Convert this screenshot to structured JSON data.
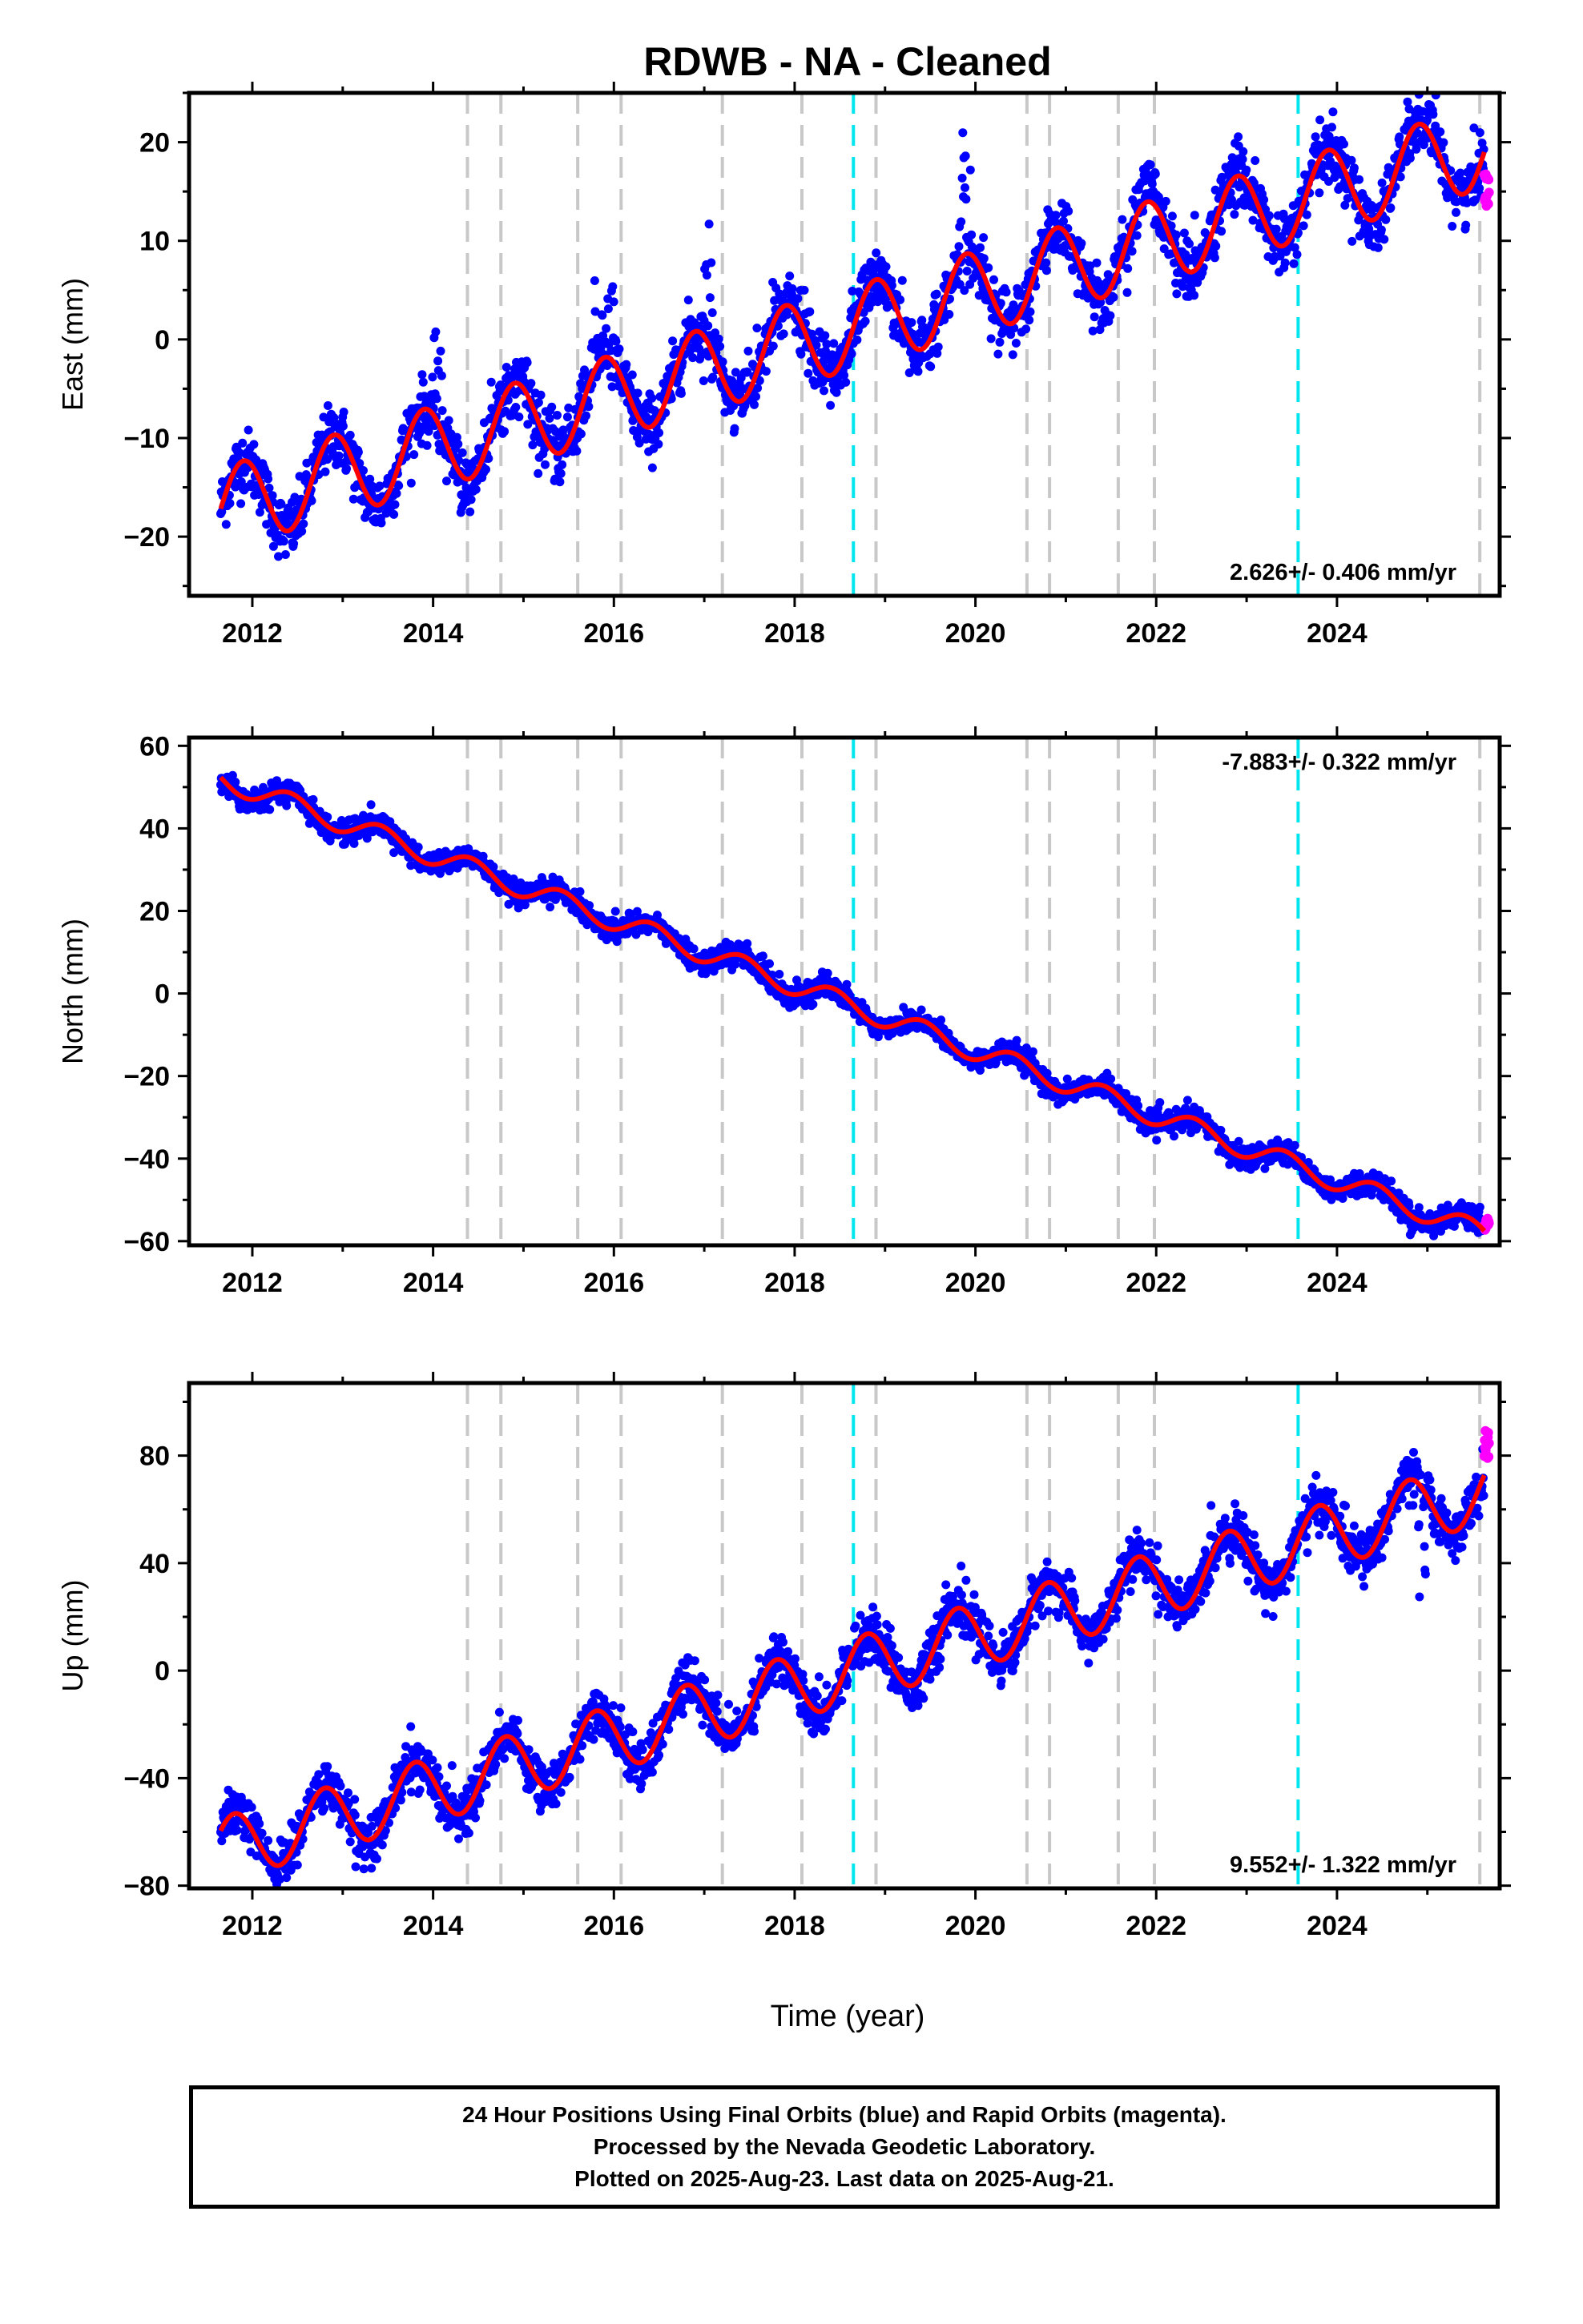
{
  "title": "RDWB  - NA - Cleaned",
  "xlabel": "Time (year)",
  "x_ticks": [
    "2012",
    "2014",
    "2016",
    "2018",
    "2020",
    "2022",
    "2024"
  ],
  "colors": {
    "final_points": "#0000ff",
    "rapid_points": "#ff00ff",
    "fit": "#ff0000",
    "event_gray": "#c8c8c8",
    "event_cyan": "#00e5ee"
  },
  "footer": {
    "line1": "24 Hour Positions Using Final Orbits (blue) and Rapid Orbits (magenta).",
    "line2": "Processed by the Nevada Geodetic Laboratory.",
    "line3": "Plotted on 2025-Aug-23. Last data on 2025-Aug-21."
  },
  "chart_data": [
    {
      "type": "scatter",
      "ylabel": "East (mm)",
      "xlim": [
        2011.3,
        2025.8
      ],
      "ylim": [
        -26,
        25
      ],
      "y_ticks": [
        "20",
        "10",
        "0",
        "-10",
        "-20"
      ],
      "rate_label": "2.626+/- 0.406 mm/yr",
      "rate_position": "bottom-right",
      "data_start": 2011.65,
      "data_end": 2025.63,
      "trend_mm_per_yr": 2.626,
      "fit_value_at_2018": -0.5,
      "seasonal_amplitude": 4.2,
      "seasonal_peak_fraction": 0.9,
      "scatter_mm": 1.6,
      "outlier_spikes": [
        [
          2019.85,
          2019.95,
          22
        ],
        [
          2015.75,
          2016.0,
          6
        ],
        [
          2017.0,
          2017.1,
          14
        ],
        [
          2021.8,
          2022.0,
          18
        ],
        [
          2014.0,
          2014.1,
          3
        ]
      ],
      "rapid_end_value": 15,
      "vertical_lines_gray": [
        2014.38,
        2014.75,
        2015.6,
        2016.08,
        2017.2,
        2018.08,
        2018.9,
        2020.57,
        2020.82,
        2021.58,
        2021.98,
        2025.58
      ],
      "vertical_lines_cyan": [
        2018.65,
        2023.57
      ]
    },
    {
      "type": "scatter",
      "ylabel": "North (mm)",
      "xlim": [
        2011.3,
        2025.8
      ],
      "ylim": [
        -61,
        62
      ],
      "y_ticks": [
        "60",
        "40",
        "20",
        "0",
        "-20",
        "-40",
        "-60"
      ],
      "rate_label": "-7.883+/- 0.322 mm/yr",
      "rate_position": "top-right",
      "data_start": 2011.65,
      "data_end": 2025.63,
      "trend_mm_per_yr": -7.883,
      "fit_value_at_2018": 2.0,
      "seasonal_amplitude": 2.6,
      "seasonal_peak_fraction": 0.42,
      "scatter_mm": 1.4,
      "outlier_spikes": [],
      "rapid_end_value": -56,
      "vertical_lines_gray": [
        2014.38,
        2014.75,
        2015.6,
        2016.08,
        2017.2,
        2018.08,
        2018.9,
        2020.57,
        2020.82,
        2021.58,
        2021.98,
        2025.58
      ],
      "vertical_lines_cyan": [
        2018.65,
        2023.57
      ]
    },
    {
      "type": "scatter",
      "ylabel": "Up (mm)",
      "xlim": [
        2011.3,
        2025.8
      ],
      "ylim": [
        -81,
        107
      ],
      "y_ticks": [
        "80",
        "40",
        "0",
        "-40",
        "-80"
      ],
      "rate_label": "9.552+/- 1.322 mm/yr",
      "rate_position": "bottom-right",
      "data_start": 2011.65,
      "data_end": 2025.63,
      "trend_mm_per_yr": 9.552,
      "fit_value_at_2018": -6.0,
      "seasonal_amplitude": 12.0,
      "seasonal_peak_fraction": 0.8,
      "scatter_mm": 4.5,
      "outlier_spikes": [
        [
          2019.8,
          2019.9,
          40
        ],
        [
          2024.9,
          2025.0,
          22
        ]
      ],
      "rapid_end_value": 84,
      "vertical_lines_gray": [
        2014.38,
        2014.75,
        2015.6,
        2016.08,
        2017.2,
        2018.08,
        2018.9,
        2020.57,
        2020.82,
        2021.58,
        2021.98,
        2025.58
      ],
      "vertical_lines_cyan": [
        2018.65,
        2023.57
      ]
    }
  ]
}
